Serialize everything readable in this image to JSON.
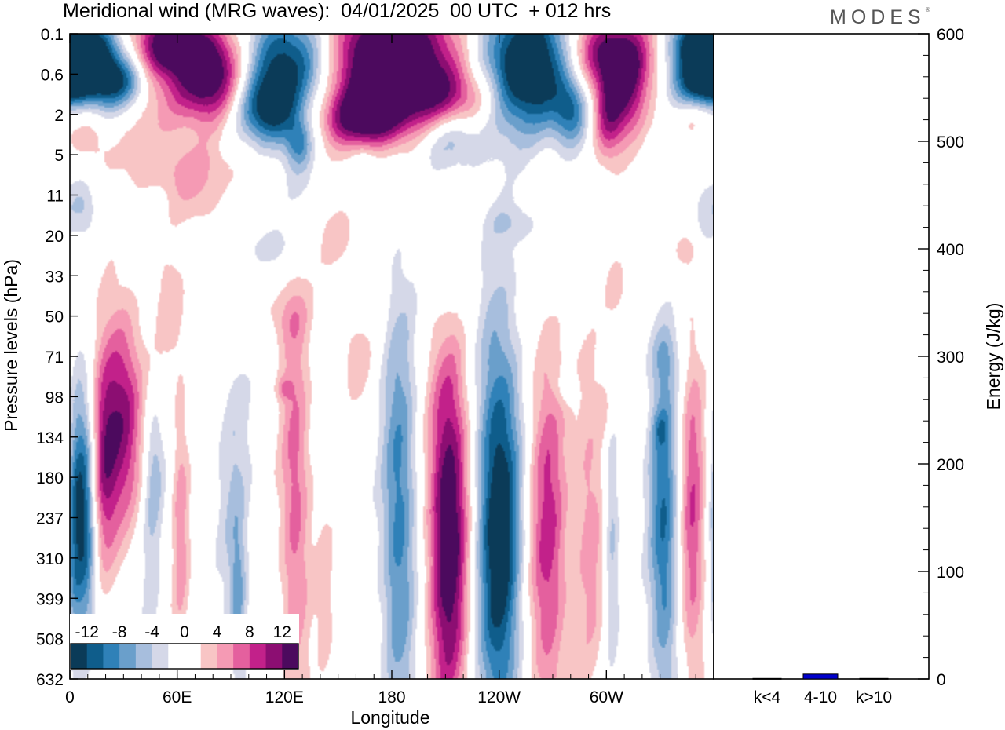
{
  "header": {
    "title": "Meridional wind (MRG waves):  04/01/2025  00 UTC  + 012 hrs",
    "logo": "MODES",
    "logo_mark": "®"
  },
  "chart_data": [
    {
      "type": "heatmap",
      "title": "Meridional wind (MRG waves):  04/01/2025  00 UTC  + 012 hrs",
      "xlabel": "Longitude",
      "ylabel": "Pressure levels (hPa)",
      "x_ticks": [
        "0",
        "60E",
        "120E",
        "180",
        "120W",
        "60W"
      ],
      "x_tick_lon": [
        0,
        60,
        120,
        180,
        240,
        300
      ],
      "xlim": [
        0,
        360
      ],
      "y_ticks": [
        "0.1",
        "0.6",
        "2",
        "5",
        "11",
        "20",
        "33",
        "50",
        "71",
        "98",
        "134",
        "180",
        "237",
        "310",
        "399",
        "508",
        "632"
      ],
      "colorbar": {
        "labels": [
          "-12",
          "-8",
          "-4",
          "0",
          "4",
          "8",
          "12"
        ],
        "colors": [
          "#0b3b58",
          "#0f5d8b",
          "#2f81b8",
          "#6a9fcb",
          "#a7bedd",
          "#d5d8e8",
          "#ffffff",
          "#ffffff",
          "#f8c5c5",
          "#f59ab4",
          "#e4609e",
          "#c2218a",
          "#8c0e72",
          "#4c0a5e"
        ]
      },
      "features": [
        {
          "lon": 29,
          "lev": 9.5,
          "rx": 8,
          "ry": 1.9,
          "v": 11
        },
        {
          "lon": 19,
          "lev": 10.7,
          "rx": 5,
          "ry": 1.8,
          "v": 8
        },
        {
          "lon": 6,
          "lev": 11.4,
          "rx": 4,
          "ry": 2.1,
          "v": -8
        },
        {
          "lon": 2,
          "lev": 12.6,
          "rx": 3,
          "ry": 2.0,
          "v": -5
        },
        {
          "lon": 10,
          "lev": 12.6,
          "rx": 4,
          "ry": 2.2,
          "v": -6
        },
        {
          "lon": 47,
          "lev": 10.8,
          "rx": 4,
          "ry": 1.2,
          "v": -5
        },
        {
          "lon": 45,
          "lev": 13.6,
          "rx": 4,
          "ry": 1.5,
          "v": -3
        },
        {
          "lon": 62,
          "lev": 12.2,
          "rx": 3.5,
          "ry": 2.6,
          "v": 5
        },
        {
          "lon": 92,
          "lev": 11.5,
          "rx": 7,
          "ry": 3.0,
          "v": -4
        },
        {
          "lon": 94,
          "lev": 14.0,
          "rx": 3,
          "ry": 1.3,
          "v": -5
        },
        {
          "lon": 126,
          "lev": 11.5,
          "rx": 6,
          "ry": 3.6,
          "v": 7
        },
        {
          "lon": 143,
          "lev": 14.2,
          "rx": 4,
          "ry": 1.8,
          "v": 3
        },
        {
          "lon": 184,
          "lev": 12.0,
          "rx": 7,
          "ry": 3.8,
          "v": -9
        },
        {
          "lon": 212,
          "lev": 12.3,
          "rx": 8,
          "ry": 3.4,
          "v": 15
        },
        {
          "lon": 240,
          "lev": 12.3,
          "rx": 9,
          "ry": 3.6,
          "v": -15
        },
        {
          "lon": 267,
          "lev": 12.5,
          "rx": 8,
          "ry": 3.4,
          "v": 9
        },
        {
          "lon": 291,
          "lev": 12.2,
          "rx": 6,
          "ry": 3.0,
          "v": 5
        },
        {
          "lon": 303,
          "lev": 12.3,
          "rx": 3,
          "ry": 2.5,
          "v": -5
        },
        {
          "lon": 332,
          "lev": 12.2,
          "rx": 6,
          "ry": 3.2,
          "v": -10
        },
        {
          "lon": 348,
          "lev": 12.0,
          "rx": 5,
          "ry": 3.0,
          "v": 8
        },
        {
          "lon": 8,
          "lev": 0.3,
          "rx": 14,
          "ry": 0.45,
          "v": -14
        },
        {
          "lon": 20,
          "lev": 1.1,
          "rx": 18,
          "ry": 0.45,
          "v": -13
        },
        {
          "lon": 33,
          "lev": 1.5,
          "rx": 13,
          "ry": 0.5,
          "v": -5
        },
        {
          "lon": 47,
          "lev": 0.9,
          "rx": 14,
          "ry": 1.1,
          "v": 9
        },
        {
          "lon": 78,
          "lev": 1.0,
          "rx": 14,
          "ry": 0.8,
          "v": 15
        },
        {
          "lon": 60,
          "lev": 0.2,
          "rx": 12,
          "ry": 0.5,
          "v": 9
        },
        {
          "lon": 124,
          "lev": 0.7,
          "rx": 17,
          "ry": 0.9,
          "v": -15
        },
        {
          "lon": 111,
          "lev": 1.9,
          "rx": 12,
          "ry": 0.6,
          "v": -12
        },
        {
          "lon": 128,
          "lev": 2.7,
          "rx": 5,
          "ry": 0.4,
          "v": -6
        },
        {
          "lon": 178,
          "lev": 0.7,
          "rx": 28,
          "ry": 1.1,
          "v": 18
        },
        {
          "lon": 165,
          "lev": 2.1,
          "rx": 17,
          "ry": 0.5,
          "v": 11
        },
        {
          "lon": 215,
          "lev": 1.6,
          "rx": 18,
          "ry": 0.55,
          "v": 7
        },
        {
          "lon": 255,
          "lev": 0.8,
          "rx": 18,
          "ry": 1.1,
          "v": -18
        },
        {
          "lon": 280,
          "lev": 1.9,
          "rx": 7,
          "ry": 0.6,
          "v": -8
        },
        {
          "lon": 212,
          "lev": 2.6,
          "rx": 14,
          "ry": 0.55,
          "v": -6
        },
        {
          "lon": 303,
          "lev": 0.5,
          "rx": 16,
          "ry": 0.7,
          "v": 14
        },
        {
          "lon": 310,
          "lev": 1.6,
          "rx": 9,
          "ry": 0.8,
          "v": 9
        },
        {
          "lon": 300,
          "lev": 2.2,
          "rx": 6,
          "ry": 0.7,
          "v": 7
        },
        {
          "lon": 353,
          "lev": 0.3,
          "rx": 12,
          "ry": 0.5,
          "v": -14
        },
        {
          "lon": 354,
          "lev": 1.3,
          "rx": 12,
          "ry": 0.45,
          "v": -12
        },
        {
          "lon": 350,
          "lev": 2.0,
          "rx": 10,
          "ry": 0.4,
          "v": 3
        },
        {
          "lon": 62,
          "lev": 3.3,
          "rx": 28,
          "ry": 0.45,
          "v": 3
        },
        {
          "lon": 70,
          "lev": 4.0,
          "rx": 13,
          "ry": 0.6,
          "v": 3
        },
        {
          "lon": 12,
          "lev": 2.6,
          "rx": 7,
          "ry": 0.5,
          "v": 3
        },
        {
          "lon": 127,
          "lev": 3.4,
          "rx": 8,
          "ry": 0.9,
          "v": -3
        },
        {
          "lon": 165,
          "lev": 3.2,
          "rx": 5,
          "ry": 0.3,
          "v": -3
        },
        {
          "lon": 355,
          "lev": 4.3,
          "rx": 8,
          "ry": 0.6,
          "v": -3
        },
        {
          "lon": 8,
          "lev": 4.3,
          "rx": 5,
          "ry": 0.5,
          "v": -3
        },
        {
          "lon": 150,
          "lev": 5.1,
          "rx": 10,
          "ry": 0.6,
          "v": 3
        },
        {
          "lon": 113,
          "lev": 5.3,
          "rx": 13,
          "ry": 0.35,
          "v": -3
        },
        {
          "lon": 210,
          "lev": 6.1,
          "rx": 7,
          "ry": 1.3,
          "v": -3
        },
        {
          "lon": 250,
          "lev": 4.7,
          "rx": 12,
          "ry": 0.35,
          "v": -3
        },
        {
          "lon": 305,
          "lev": 6.3,
          "rx": 5,
          "ry": 0.8,
          "v": 3
        },
        {
          "lon": 345,
          "lev": 5.4,
          "rx": 5,
          "ry": 0.3,
          "v": 3
        },
        {
          "lon": 55,
          "lev": 6.7,
          "rx": 6,
          "ry": 1.1,
          "v": 3
        },
        {
          "lon": 120,
          "lev": 7.0,
          "rx": 10,
          "ry": 0.5,
          "v": 3
        },
        {
          "lon": 160,
          "lev": 8.0,
          "rx": 7,
          "ry": 0.8,
          "v": 3
        },
        {
          "lon": 332,
          "lev": 8.0,
          "rx": 6,
          "ry": 0.5,
          "v": -3
        },
        {
          "lon": 300,
          "lev": 9.3,
          "rx": 4,
          "ry": 0.6,
          "v": 3
        },
        {
          "lon": 278,
          "lev": 8.8,
          "rx": 4,
          "ry": 0.3,
          "v": -3
        },
        {
          "lon": 120,
          "lev": 8.8,
          "rx": 3,
          "ry": 0.2,
          "v": 4
        },
        {
          "lon": 330,
          "lev": 9.8,
          "rx": 3,
          "ry": 0.3,
          "v": -3
        }
      ]
    },
    {
      "type": "bar",
      "categories": [
        "k<4",
        "4-10",
        "k>10"
      ],
      "values": [
        0.5,
        4.5,
        0.5
      ],
      "ylabel": "Energy (J/kg)",
      "ylim": [
        0,
        600
      ],
      "y_ticks": [
        "0",
        "100",
        "200",
        "300",
        "400",
        "500",
        "600"
      ],
      "bar_color": "#0000cc"
    }
  ]
}
